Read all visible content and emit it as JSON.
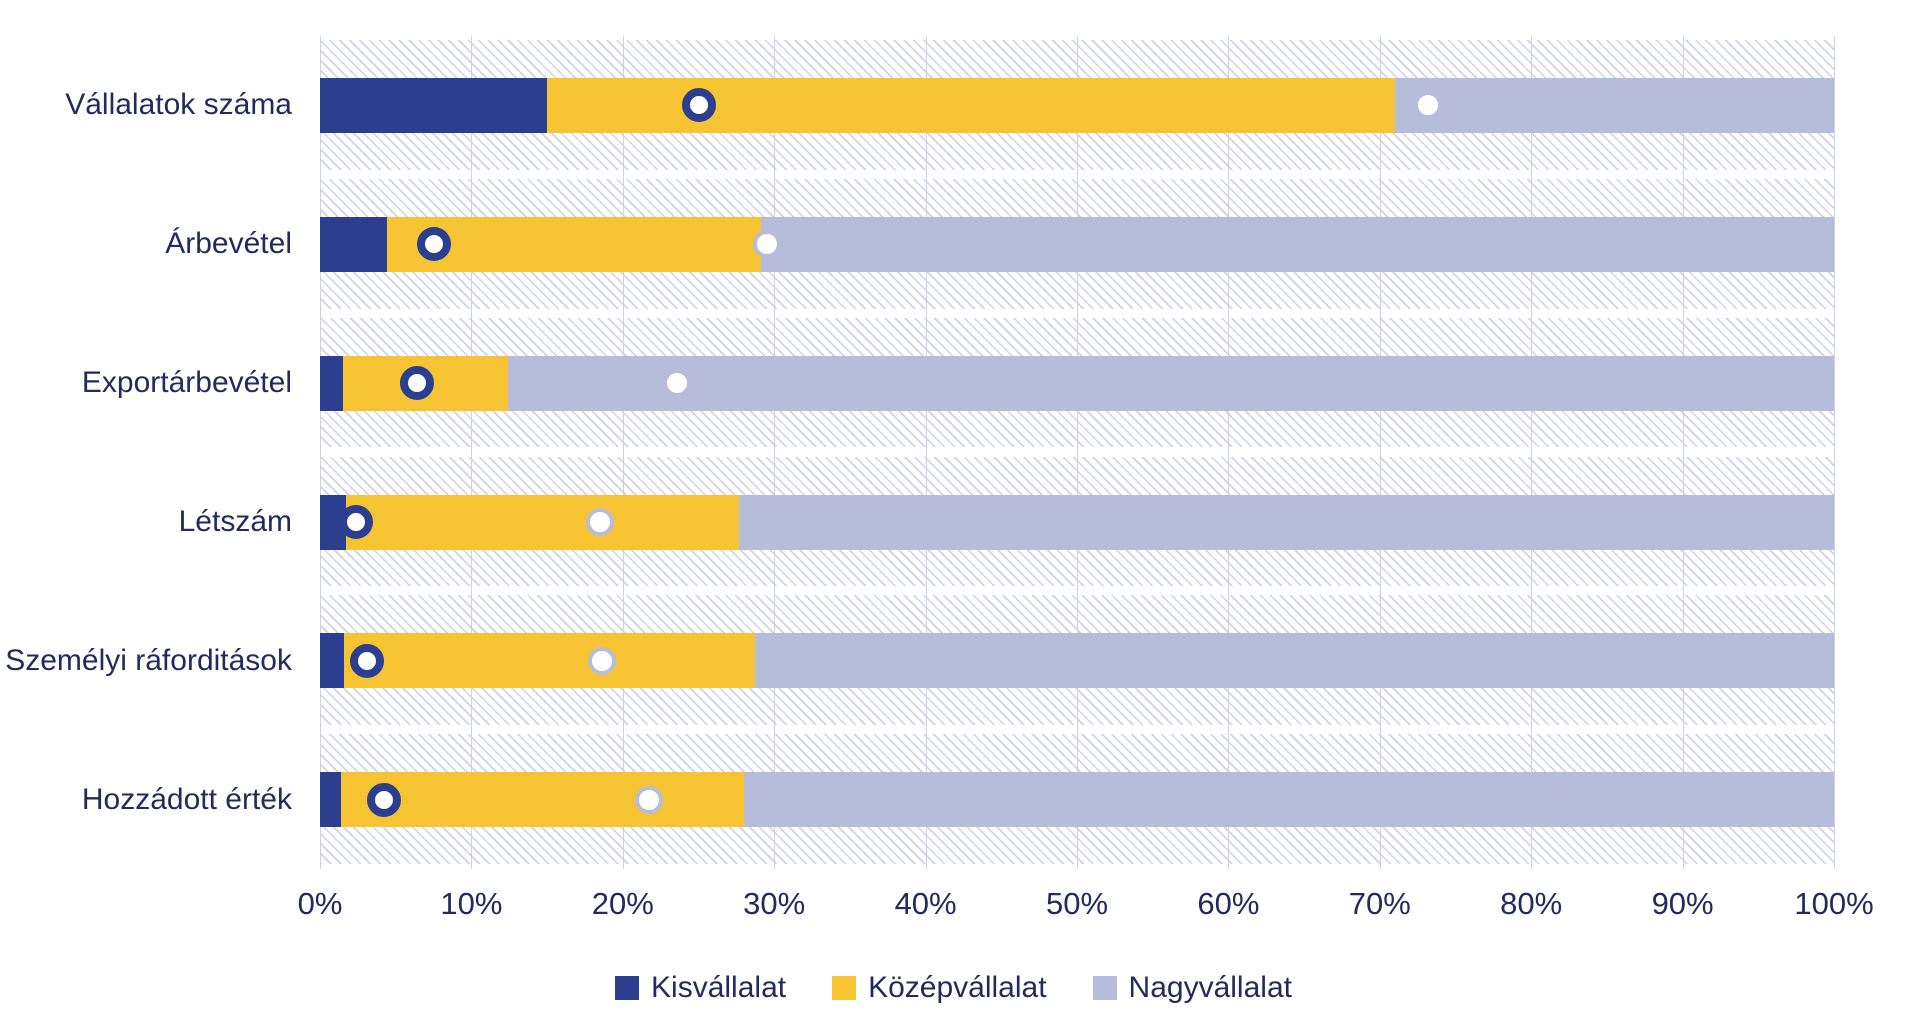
{
  "chart_data": {
    "type": "bar",
    "orientation": "horizontal",
    "stacked": true,
    "title": "",
    "xlabel": "",
    "ylabel": "",
    "xlim": [
      0,
      100
    ],
    "grid": true,
    "plot_background": "white with light lavender diagonal hatch",
    "legend_position": "bottom-center",
    "categories": [
      "Vállalatok száma",
      "Árbevétel",
      "Exportárbevétel",
      "Létszám",
      "Személyi ráforditások",
      "Hozzádott érték"
    ],
    "series": [
      {
        "name": "Kisvállalat",
        "color": "#2B3E90",
        "values": [
          15.0,
          4.4,
          1.5,
          1.7,
          1.6,
          1.4
        ]
      },
      {
        "name": "Középvállalat",
        "color": "#F6C333",
        "values": [
          56.0,
          24.7,
          10.9,
          26.0,
          27.1,
          26.6
        ]
      },
      {
        "name": "Nagyvállalat",
        "color": "#B8BCDB",
        "values": [
          29.0,
          70.9,
          87.6,
          72.3,
          71.3,
          72.0
        ]
      }
    ],
    "markers": {
      "ring_markers": {
        "style": "white circle with navy ring",
        "ring_color": "#2B3E90",
        "fill_color": "#FFFFFF",
        "values_pct": [
          25.0,
          7.5,
          6.4,
          2.4,
          3.1,
          4.2
        ]
      },
      "dot_markers": {
        "style": "white circle with light lavender ring",
        "ring_color": "#B8BCDB",
        "fill_color": "#FFFFFF",
        "values_pct": [
          73.2,
          29.5,
          23.6,
          18.5,
          18.6,
          21.7
        ]
      }
    },
    "x_ticks": [
      "0%",
      "10%",
      "20%",
      "30%",
      "40%",
      "50%",
      "60%",
      "70%",
      "80%",
      "90%",
      "100%"
    ]
  },
  "style_colors": {
    "text": "#232A5C",
    "gridline": "#CDD0E6",
    "hatch": "#A8ADD4"
  }
}
